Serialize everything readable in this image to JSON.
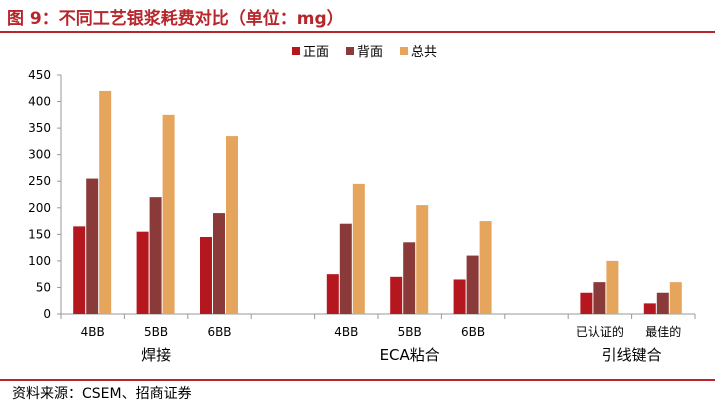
{
  "figure": {
    "title": "图 9：不同工艺银浆耗费对比（单位：mg）",
    "source": "资料来源：CSEM、招商证券"
  },
  "colors": {
    "accent": "#b7262b",
    "series": [
      "#b5171e",
      "#8b3a3a",
      "#e5a55d"
    ],
    "axis": "#999999"
  },
  "chart_data": {
    "type": "bar",
    "categories": [
      "4BB",
      "5BB",
      "6BB",
      "4BB",
      "5BB",
      "6BB",
      "已认证的",
      "最佳的"
    ],
    "groups": [
      {
        "label": "焊接",
        "categories": [
          "4BB",
          "5BB",
          "6BB"
        ]
      },
      {
        "label": "ECA粘合",
        "categories": [
          "4BB",
          "5BB",
          "6BB"
        ]
      },
      {
        "label": "引线键合",
        "categories": [
          "已认证的",
          "最佳的"
        ]
      }
    ],
    "series": [
      {
        "name": "正面",
        "values": [
          165,
          155,
          145,
          75,
          70,
          65,
          40,
          20
        ]
      },
      {
        "name": "背面",
        "values": [
          255,
          220,
          190,
          170,
          135,
          110,
          60,
          40
        ]
      },
      {
        "name": "总共",
        "values": [
          420,
          375,
          335,
          245,
          205,
          175,
          100,
          60
        ]
      }
    ],
    "ylim": [
      0,
      450
    ],
    "yticks": [
      0,
      50,
      100,
      150,
      200,
      250,
      300,
      350,
      400,
      450
    ],
    "legend": "top-center",
    "grid": false
  }
}
